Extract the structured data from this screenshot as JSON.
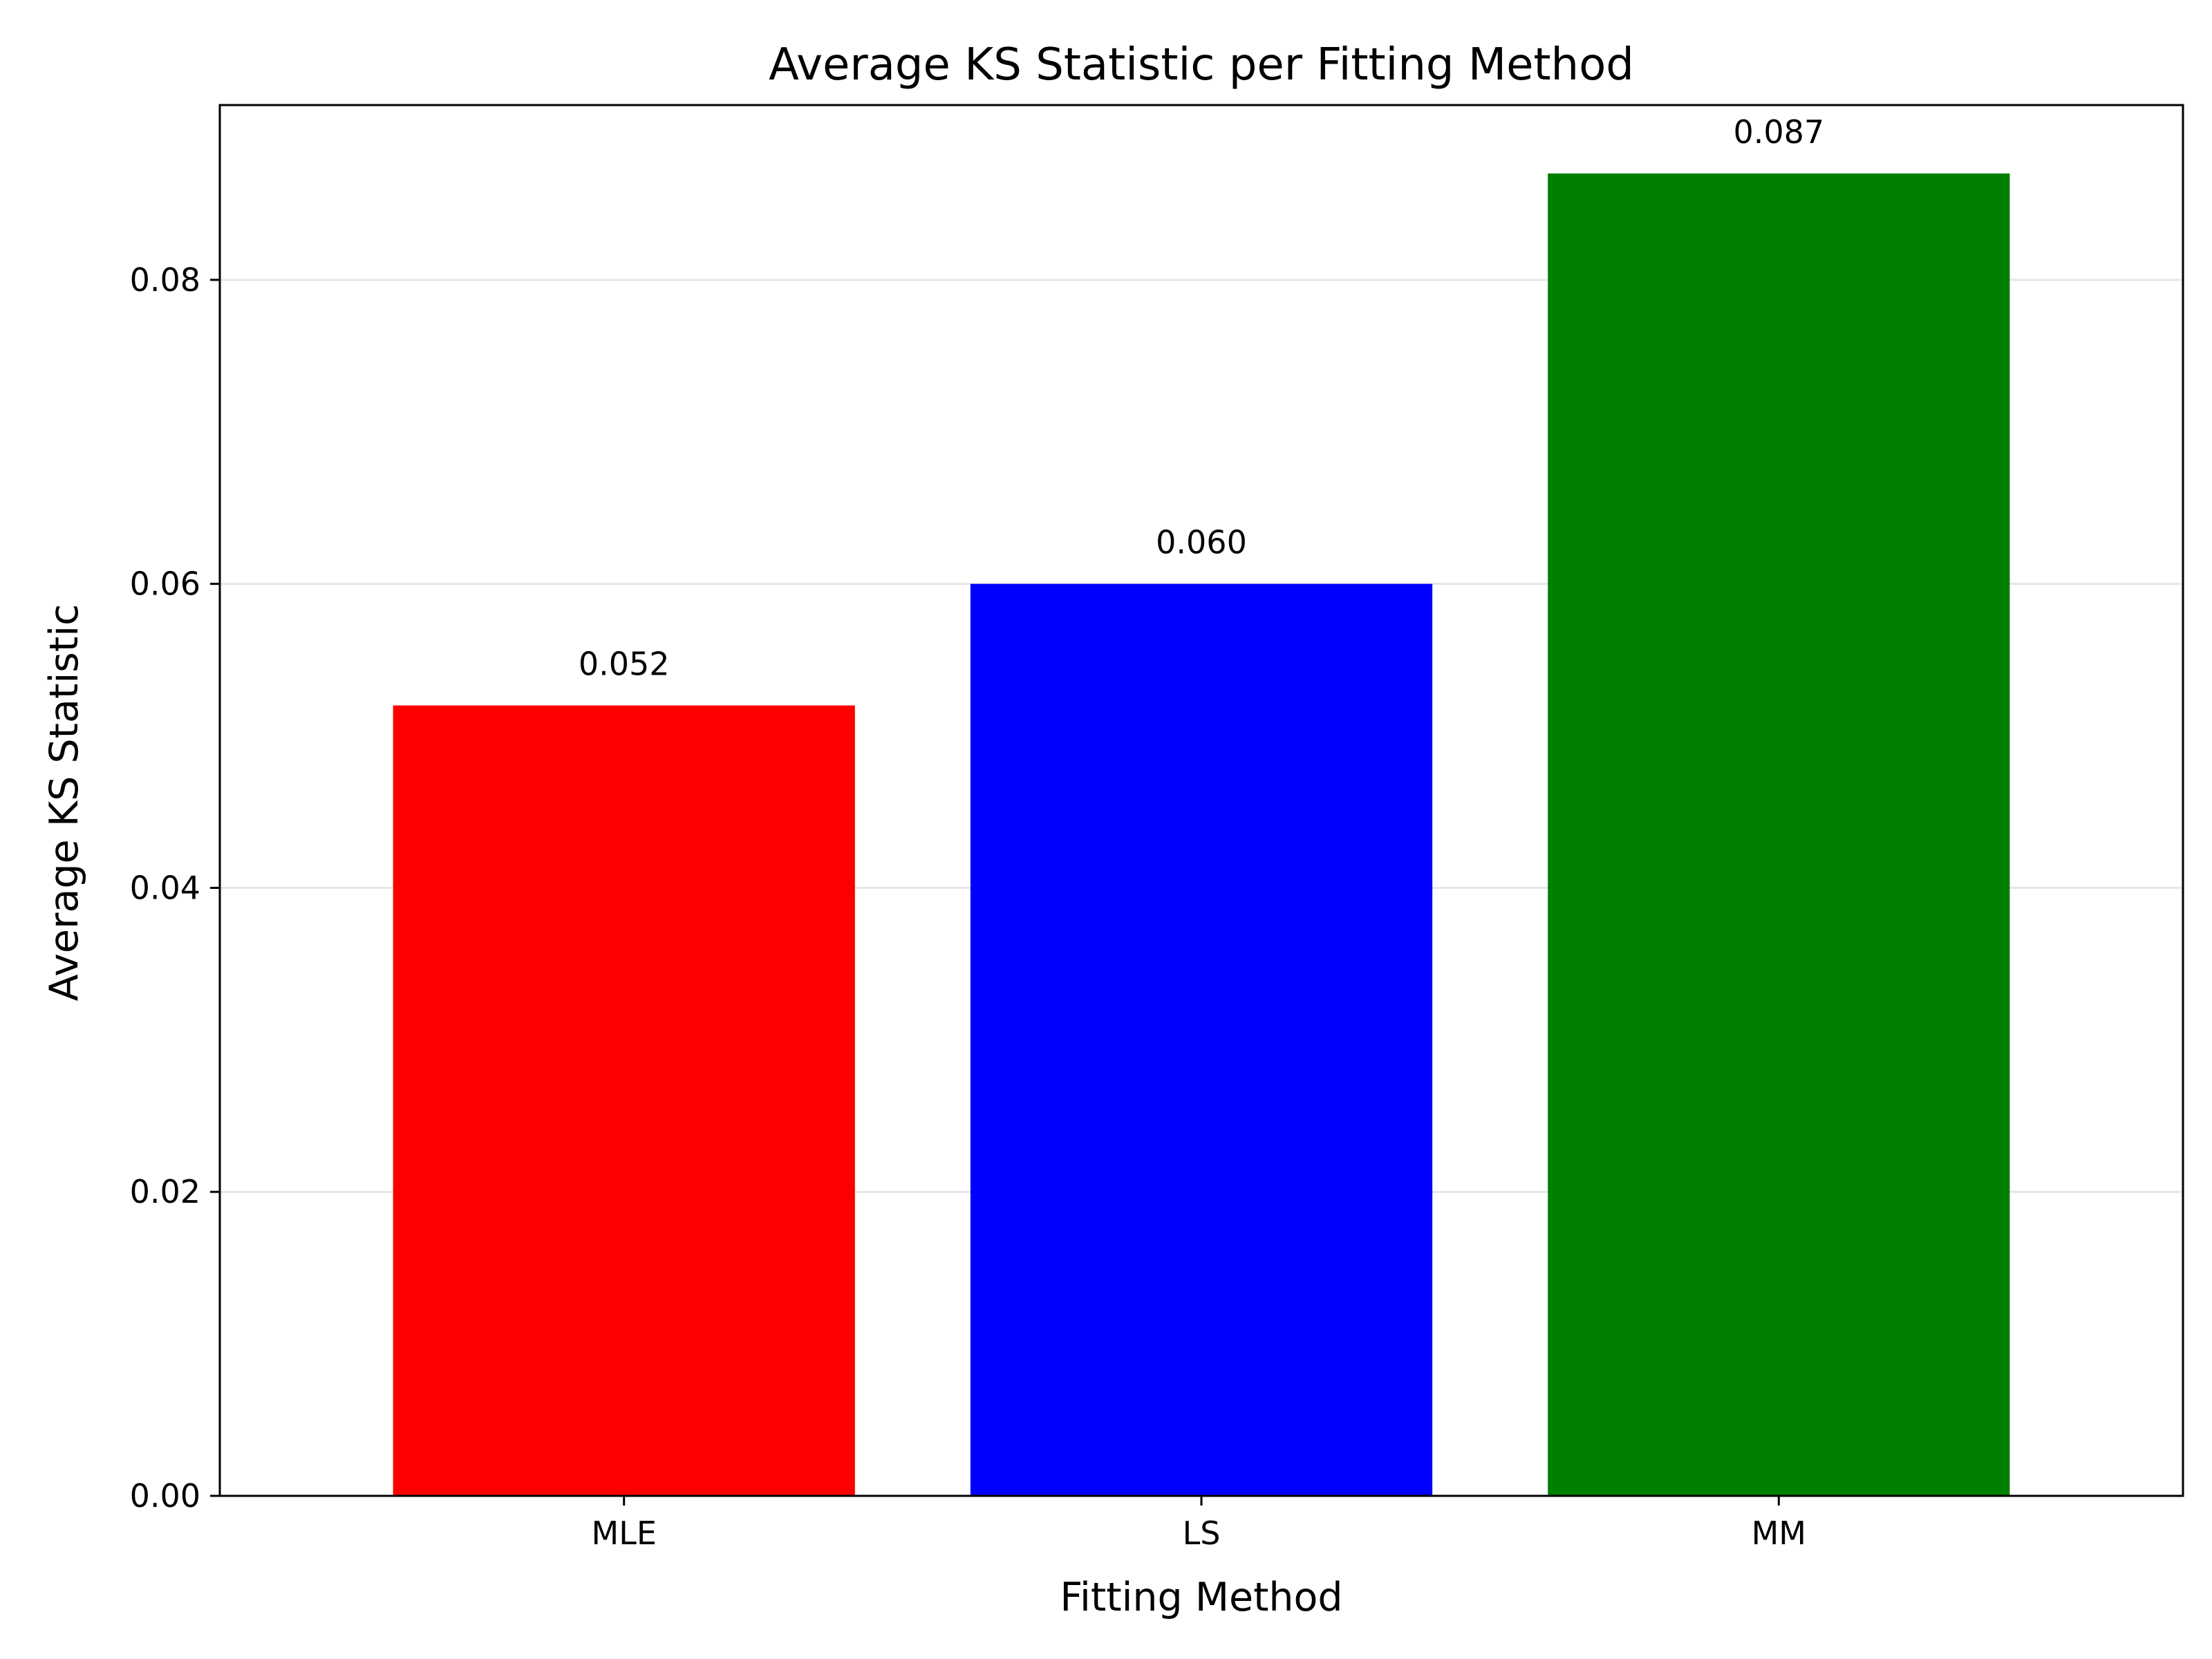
{
  "chart_data": {
    "type": "bar",
    "title": "Average KS Statistic per Fitting Method",
    "xlabel": "Fitting Method",
    "ylabel": "Average KS Statistic",
    "categories": [
      "MLE",
      "LS",
      "MM"
    ],
    "values": [
      0.052,
      0.06,
      0.087
    ],
    "value_labels": [
      "0.052",
      "0.060",
      "0.087"
    ],
    "colors": [
      "#ff0000",
      "#0000ff",
      "#008000"
    ],
    "ylim": [
      0,
      0.0915
    ],
    "yticks": [
      0.0,
      0.02,
      0.04,
      0.06,
      0.08
    ],
    "ytick_labels": [
      "0.00",
      "0.02",
      "0.04",
      "0.06",
      "0.08"
    ],
    "grid": "y-major",
    "legend": "none"
  }
}
